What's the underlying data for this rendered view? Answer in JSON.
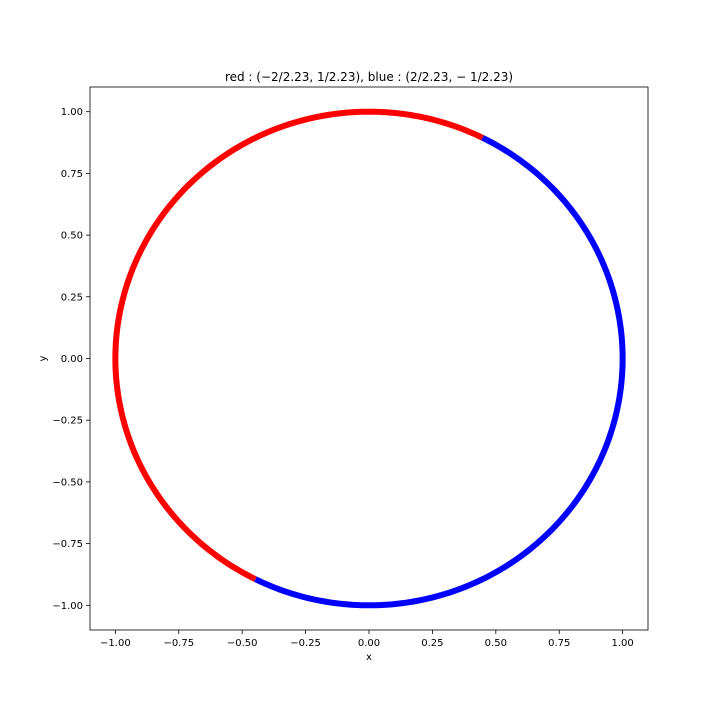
{
  "chart_data": {
    "type": "scatter",
    "title": "red : (−2/2.23, 1/2.23), blue : (2/2.23, − 1/2.23)",
    "xlabel": "x",
    "ylabel": "y",
    "xlim": [
      -1.1,
      1.1
    ],
    "ylim": [
      -1.1,
      1.1
    ],
    "x_ticks": [
      -1.0,
      -0.75,
      -0.5,
      -0.25,
      0.0,
      0.25,
      0.5,
      0.75,
      1.0
    ],
    "y_ticks": [
      -1.0,
      -0.75,
      -0.5,
      -0.25,
      0.0,
      0.25,
      0.5,
      0.75,
      1.0
    ],
    "x_tick_labels": [
      "−1.00",
      "−0.75",
      "−0.50",
      "−0.25",
      "0.00",
      "0.25",
      "0.50",
      "0.75",
      "1.00"
    ],
    "y_tick_labels": [
      "−1.00",
      "−0.75",
      "−0.50",
      "−0.25",
      "0.00",
      "0.25",
      "0.50",
      "0.75",
      "1.00"
    ],
    "grid": false,
    "series": [
      {
        "color": "#ff0000",
        "shape": "unit circle arc",
        "angle_range_deg": [
          63.4,
          243.4
        ]
      },
      {
        "color": "#0000ff",
        "shape": "unit circle arc",
        "angle_range_deg": [
          -116.6,
          63.4
        ]
      }
    ]
  }
}
